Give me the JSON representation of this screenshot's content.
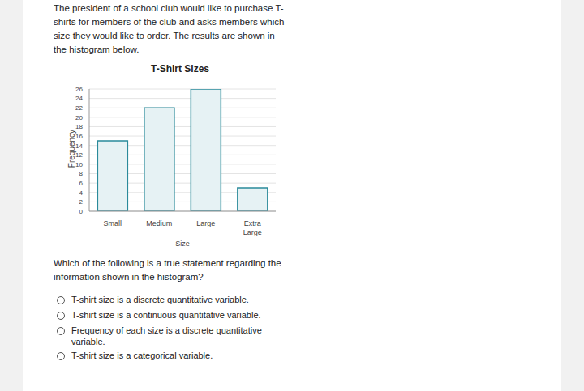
{
  "question": {
    "intro": "The president of a school club would like to purchase T-shirts for members of the club and asks members which size they would like to order. The results are shown in the histogram below.",
    "prompt": "Which of the following is a true statement regarding the information shown in the histogram?",
    "options": [
      "T-shirt size is a discrete quantitative variable.",
      "T-shirt size is a continuous quantitative variable.",
      "Frequency of each size is a discrete quantitative variable.",
      "T-shirt size is a categorical variable."
    ]
  },
  "chart_data": {
    "type": "bar",
    "title": "T-Shirt Sizes",
    "x_label": "Size",
    "y_label": "Frequency",
    "categories": [
      "Small",
      "Medium",
      "Large",
      "Extra Large"
    ],
    "values": [
      15,
      22,
      26,
      5
    ],
    "color": "#2a8a9a",
    "ylim": [
      0,
      26
    ],
    "yticks": [
      0,
      2,
      4,
      6,
      8,
      10,
      12,
      14,
      16,
      18,
      20,
      22,
      24,
      26
    ],
    "grid": true
  }
}
